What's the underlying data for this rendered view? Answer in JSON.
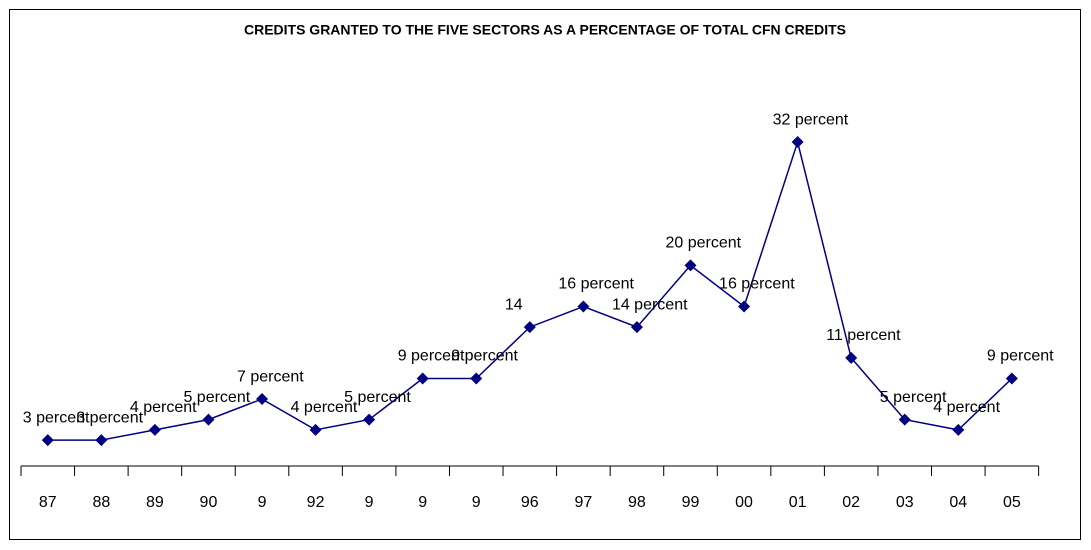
{
  "chart_data": {
    "type": "line",
    "title": "CREDITS GRANTED TO THE FIVE SECTORS AS A PERCENTAGE OF TOTAL CFN CREDITS",
    "categories": [
      "87",
      "88",
      "89",
      "90",
      "9",
      "92",
      "9",
      "9",
      "9",
      "96",
      "97",
      "98",
      "99",
      "00",
      "01",
      "02",
      "03",
      "04",
      "05"
    ],
    "series": [
      {
        "name": "Credits",
        "color": "#000080",
        "values": [
          3,
          3,
          4,
          5,
          7,
          4,
          5,
          9,
          9,
          14,
          16,
          14,
          20,
          16,
          32,
          11,
          5,
          4,
          9
        ],
        "value_labels": [
          "3 percent",
          "3 percent",
          "4 percent",
          "5 percent",
          "7 percent",
          "4 percent",
          "5 percent",
          "9 percent",
          "9 percent",
          "14",
          "16 percent",
          "14 percent",
          "20 percent",
          "16 percent",
          "32 percent",
          "11 percent",
          "5 percent",
          "4 percent",
          "9 percent"
        ]
      }
    ],
    "ylim": [
      0,
      34
    ]
  }
}
